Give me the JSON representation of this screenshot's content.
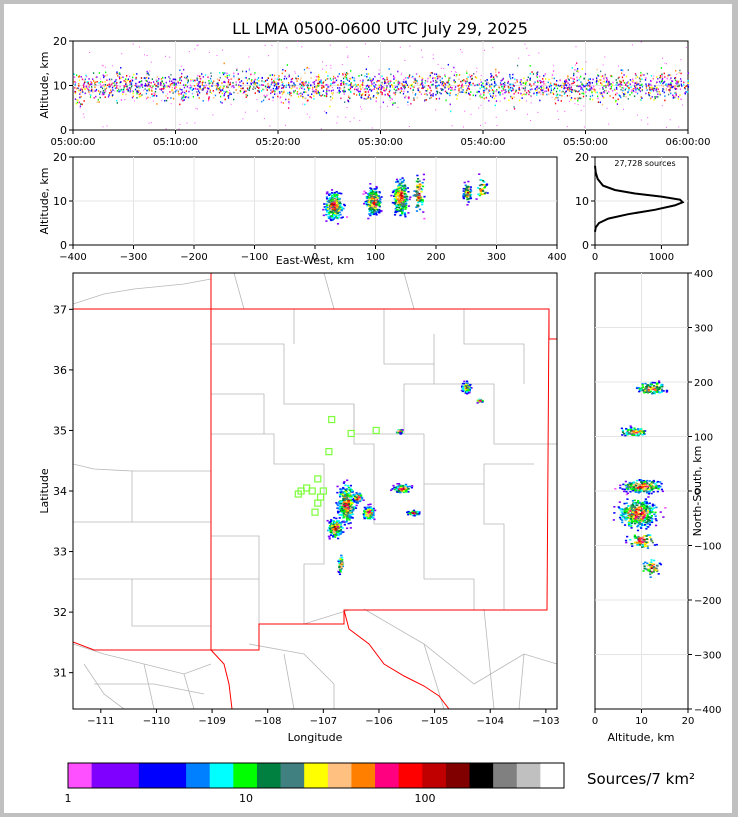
{
  "title": "LL LMA 0500-0600 UTC July 29, 2025",
  "chart_data": [
    {
      "id": "time-height",
      "type": "scatter",
      "ylabel": "Altitude, km",
      "xlabel": "",
      "ylim": [
        0,
        20
      ],
      "yticks": [
        0,
        10,
        20
      ],
      "xticks": [
        "05:00:00",
        "05:10:00",
        "05:20:00",
        "05:30:00",
        "05:40:00",
        "05:50:00",
        "06:00:00"
      ],
      "xrange_minutes": [
        0,
        60
      ],
      "series": [
        {
          "altitude_km_band": [
            5,
            15
          ],
          "center_km": 10
        }
      ]
    },
    {
      "id": "ew-altitude",
      "type": "heatmap",
      "xlabel": "East-West, km",
      "ylabel": "Altitude, km",
      "xlim": [
        -400,
        400
      ],
      "ylim": [
        0,
        20
      ],
      "xticks": [
        -400,
        -300,
        -200,
        -100,
        0,
        100,
        200,
        300,
        400
      ],
      "yticks": [
        0,
        10,
        20
      ],
      "clusters": [
        {
          "x": 30,
          "y": 9,
          "dx": 15,
          "dy": 3,
          "n": 90
        },
        {
          "x": 95,
          "y": 10,
          "dx": 12,
          "dy": 3,
          "n": 90
        },
        {
          "x": 140,
          "y": 11,
          "dx": 12,
          "dy": 4,
          "n": 80
        },
        {
          "x": 170,
          "y": 12,
          "dx": 8,
          "dy": 4,
          "n": 30
        },
        {
          "x": 250,
          "y": 12,
          "dx": 6,
          "dy": 2,
          "n": 30
        },
        {
          "x": 275,
          "y": 13,
          "dx": 8,
          "dy": 3,
          "n": 12
        }
      ]
    },
    {
      "id": "altitude-histogram",
      "type": "line",
      "annotation": "27,728 sources",
      "xlim": [
        0,
        1400
      ],
      "ylim": [
        0,
        20
      ],
      "xticks": [
        0,
        1000
      ],
      "yticks": [
        0,
        10,
        20
      ],
      "series": [
        {
          "x": [
            0,
            10,
            60,
            200,
            500,
            900,
            1200,
            1320,
            1280,
            1000,
            600,
            300,
            120,
            40,
            10,
            0
          ],
          "y": [
            3,
            4,
            5,
            6,
            7,
            8,
            9,
            9.7,
            10.3,
            11,
            11.7,
            12.5,
            13.5,
            15,
            16.5,
            18
          ]
        }
      ]
    },
    {
      "id": "map",
      "type": "heatmap",
      "xlabel": "Longitude",
      "ylabel": "Latitude",
      "xlim": [
        -111.5,
        -102.8
      ],
      "ylim": [
        30.4,
        37.6
      ],
      "xticks": [
        -111,
        -110,
        -109,
        -108,
        -107,
        -106,
        -105,
        -104,
        -103
      ],
      "yticks": [
        31,
        32,
        33,
        34,
        35,
        36,
        37
      ],
      "clusters": [
        {
          "x": -106.6,
          "y": 33.8,
          "dx": 0.15,
          "dy": 0.3,
          "n": 120
        },
        {
          "x": -106.8,
          "y": 33.4,
          "dx": 0.12,
          "dy": 0.15,
          "n": 60
        },
        {
          "x": -106.2,
          "y": 33.65,
          "dx": 0.1,
          "dy": 0.1,
          "n": 50
        },
        {
          "x": -106.4,
          "y": 33.9,
          "dx": 0.08,
          "dy": 0.08,
          "n": 25
        },
        {
          "x": -106.7,
          "y": 32.8,
          "dx": 0.04,
          "dy": 0.15,
          "n": 20
        },
        {
          "x": -105.6,
          "y": 34.05,
          "dx": 0.15,
          "dy": 0.07,
          "n": 40
        },
        {
          "x": -105.4,
          "y": 33.65,
          "dx": 0.1,
          "dy": 0.04,
          "n": 18
        },
        {
          "x": -105.65,
          "y": 35.0,
          "dx": 0.05,
          "dy": 0.04,
          "n": 12
        },
        {
          "x": -104.45,
          "y": 35.72,
          "dx": 0.07,
          "dy": 0.08,
          "n": 30
        },
        {
          "x": -104.2,
          "y": 35.5,
          "dx": 0.05,
          "dy": 0.03,
          "n": 10
        }
      ],
      "station_markers": [
        {
          "lon": -107.4,
          "lat": 34.0
        },
        {
          "lon": -107.3,
          "lat": 34.05
        },
        {
          "lon": -107.2,
          "lat": 34.0
        },
        {
          "lon": -107.1,
          "lat": 34.2
        },
        {
          "lon": -107.0,
          "lat": 34.0
        },
        {
          "lon": -107.1,
          "lat": 33.8
        },
        {
          "lon": -107.15,
          "lat": 33.65
        },
        {
          "lon": -106.9,
          "lat": 34.65
        },
        {
          "lon": -106.85,
          "lat": 35.18
        },
        {
          "lon": -106.5,
          "lat": 34.95
        },
        {
          "lon": -106.05,
          "lat": 35.0
        },
        {
          "lon": -107.45,
          "lat": 33.95
        },
        {
          "lon": -107.05,
          "lat": 33.9
        }
      ]
    },
    {
      "id": "altitude-ns",
      "type": "heatmap",
      "xlabel": "Altitude, km",
      "ylabel": "North-South, km",
      "xlim": [
        0,
        20
      ],
      "ylim": [
        -400,
        400
      ],
      "xticks": [
        0,
        10,
        20
      ],
      "yticks": [
        -400,
        -300,
        -200,
        -100,
        0,
        100,
        200,
        300,
        400
      ],
      "clusters": [
        {
          "x": 12,
          "y": 190,
          "dx": 3,
          "dy": 10,
          "n": 40
        },
        {
          "x": 8,
          "y": 110,
          "dx": 3,
          "dy": 8,
          "n": 30
        },
        {
          "x": 10,
          "y": 10,
          "dx": 4,
          "dy": 12,
          "n": 80
        },
        {
          "x": 9,
          "y": -40,
          "dx": 4,
          "dy": 25,
          "n": 140
        },
        {
          "x": 10,
          "y": -90,
          "dx": 3,
          "dy": 15,
          "n": 30
        },
        {
          "x": 12,
          "y": -140,
          "dx": 2,
          "dy": 15,
          "n": 20
        }
      ]
    }
  ],
  "colorbar": {
    "label": "Sources/7 km²",
    "ticks": [
      "1",
      "10",
      "100"
    ],
    "colors": [
      "#ff50ff",
      "#8000ff",
      "#8000ff",
      "#0000ff",
      "#0000ff",
      "#0080ff",
      "#00ffff",
      "#00ff00",
      "#008040",
      "#408080",
      "#ffff00",
      "#ffc080",
      "#ff8000",
      "#ff0080",
      "#ff0000",
      "#c00000",
      "#800000",
      "#000000",
      "#808080",
      "#c0c0c0",
      "#ffffff"
    ]
  }
}
